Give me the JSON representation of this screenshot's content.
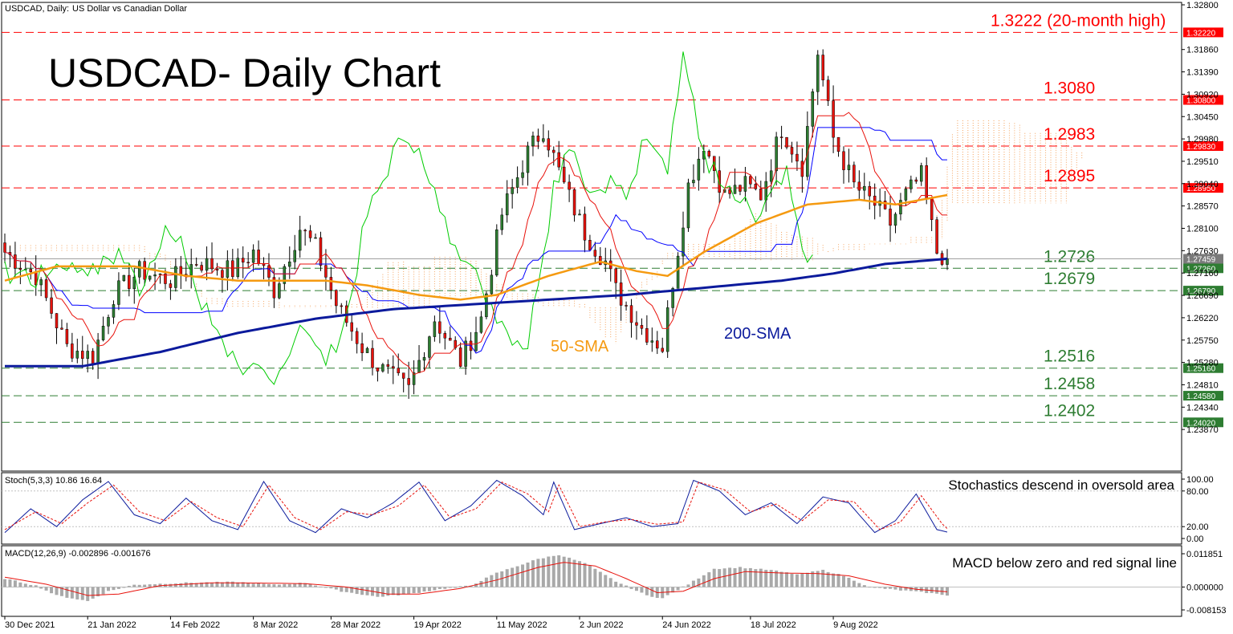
{
  "header": {
    "symbol": "USDCAD, Daily:",
    "description": "US Dollar vs Canadian Dollar"
  },
  "title": "USDCAD- Daily Chart",
  "colors": {
    "bull": "#2e7d32",
    "bear": "#e8120c",
    "sma50": "#f59a10",
    "sma200": "#0b1a9c",
    "kijun": "#0000ff",
    "tenkan": "#e8120c",
    "chikou": "#00cc00",
    "cloud": "#f4a460",
    "resistance": "#ff0000",
    "support": "#2e7d32",
    "signal": "#e8120c",
    "stoch_main": "#0b1a9c"
  },
  "price_axis": {
    "min": 1.234,
    "max": 1.328,
    "ticks": [
      "1.32800",
      "1.31860",
      "1.31390",
      "1.30920",
      "1.30450",
      "1.29980",
      "1.29510",
      "1.29040",
      "1.28570",
      "1.28100",
      "1.27630",
      "1.27160",
      "1.26690",
      "1.26220",
      "1.25750",
      "1.25280",
      "1.24810",
      "1.24340",
      "1.23870"
    ]
  },
  "date_labels": [
    "30 Dec 2021",
    "21 Jan 2022",
    "14 Feb 2022",
    "8 Mar 2022",
    "28 Mar 2022",
    "19 Apr 2022",
    "11 May 2022",
    "2 Jun 2022",
    "24 Jun 2022",
    "18 Jul 2022",
    "9 Aug 2022"
  ],
  "levels": [
    {
      "value": 1.3222,
      "label": "1.3222 (20-month high)",
      "tag": "1.32220",
      "type": "resistance"
    },
    {
      "value": 1.308,
      "label": "1.3080",
      "tag": "1.30800",
      "type": "resistance"
    },
    {
      "value": 1.2983,
      "label": "1.2983",
      "tag": "1.29830",
      "type": "resistance"
    },
    {
      "value": 1.2895,
      "label": "1.2895",
      "tag": "1.28950",
      "type": "resistance"
    },
    {
      "value": 1.2726,
      "label": "1.2726",
      "tag": "1.27260",
      "type": "support"
    },
    {
      "value": 1.2679,
      "label": "1.2679",
      "tag": "1.26790",
      "type": "support"
    },
    {
      "value": 1.2516,
      "label": "1.2516",
      "tag": "1.25160",
      "type": "support"
    },
    {
      "value": 1.2458,
      "label": "1.2458",
      "tag": "1.24580",
      "type": "support"
    },
    {
      "value": 1.2402,
      "label": "1.2402",
      "tag": "1.24020",
      "type": "support"
    }
  ],
  "current_price": {
    "value": 1.27459,
    "tag": "1.27459"
  },
  "annotations": {
    "sma50": "50-SMA",
    "sma200": "200-SMA"
  },
  "stoch": {
    "header": "Stoch(5,3,3) 10.86 16.64",
    "note": "Stochastics descend in oversold area",
    "ticks": [
      "100.00",
      "80.00",
      "20.00",
      "0.00"
    ]
  },
  "macd": {
    "header": "MACD(12,26,9) -0.002896 -0.001676",
    "note": "MACD below zero and red signal line",
    "ticks": [
      "0.011851",
      "0.000000",
      "-0.008153"
    ]
  },
  "chart_data": [
    {
      "type": "candlestick",
      "title": "USDCAD- Daily Chart",
      "x_start": "30 Dec 2021",
      "x_end": "11 Aug 2022",
      "ylim": [
        1.234,
        1.328
      ],
      "close_path": [
        [
          0,
          1.276
        ],
        [
          6,
          1.271
        ],
        [
          12,
          1.256
        ],
        [
          17,
          1.254
        ],
        [
          21,
          1.267
        ],
        [
          26,
          1.272
        ],
        [
          32,
          1.27
        ],
        [
          37,
          1.274
        ],
        [
          44,
          1.272
        ],
        [
          48,
          1.276
        ],
        [
          52,
          1.268
        ],
        [
          57,
          1.281
        ],
        [
          60,
          1.277
        ],
        [
          64,
          1.265
        ],
        [
          69,
          1.256
        ],
        [
          72,
          1.252
        ],
        [
          78,
          1.247
        ],
        [
          83,
          1.262
        ],
        [
          88,
          1.253
        ],
        [
          92,
          1.262
        ],
        [
          96,
          1.284
        ],
        [
          101,
          1.297
        ],
        [
          104,
          1.302
        ],
        [
          108,
          1.29
        ],
        [
          112,
          1.28
        ],
        [
          116,
          1.274
        ],
        [
          118,
          1.268
        ],
        [
          123,
          1.26
        ],
        [
          127,
          1.256
        ],
        [
          129,
          1.27
        ],
        [
          132,
          1.29
        ],
        [
          135,
          1.299
        ],
        [
          139,
          1.288
        ],
        [
          143,
          1.29
        ],
        [
          146,
          1.288
        ],
        [
          150,
          1.302
        ],
        [
          154,
          1.294
        ],
        [
          157,
          1.318
        ],
        [
          160,
          1.3
        ],
        [
          164,
          1.29
        ],
        [
          168,
          1.286
        ],
        [
          171,
          1.282
        ],
        [
          174,
          1.288
        ],
        [
          177,
          1.292
        ],
        [
          180,
          1.276
        ],
        [
          182,
          1.2746
        ]
      ],
      "sma50_path": [
        [
          0,
          1.27
        ],
        [
          10,
          1.273
        ],
        [
          25,
          1.273
        ],
        [
          35,
          1.271
        ],
        [
          45,
          1.27
        ],
        [
          55,
          1.27
        ],
        [
          62,
          1.27
        ],
        [
          70,
          1.269
        ],
        [
          80,
          1.267
        ],
        [
          88,
          1.266
        ],
        [
          95,
          1.267
        ],
        [
          105,
          1.271
        ],
        [
          115,
          1.274
        ],
        [
          122,
          1.272
        ],
        [
          128,
          1.271
        ],
        [
          135,
          1.276
        ],
        [
          145,
          1.282
        ],
        [
          155,
          1.286
        ],
        [
          165,
          1.287
        ],
        [
          172,
          1.286
        ],
        [
          182,
          1.288
        ]
      ],
      "sma200_path": [
        [
          0,
          1.252
        ],
        [
          15,
          1.252
        ],
        [
          30,
          1.255
        ],
        [
          45,
          1.259
        ],
        [
          60,
          1.262
        ],
        [
          75,
          1.264
        ],
        [
          90,
          1.265
        ],
        [
          105,
          1.266
        ],
        [
          120,
          1.267
        ],
        [
          130,
          1.268
        ],
        [
          140,
          1.269
        ],
        [
          150,
          1.27
        ],
        [
          160,
          1.2715
        ],
        [
          170,
          1.2735
        ],
        [
          182,
          1.2746
        ]
      ]
    },
    {
      "type": "line",
      "title": "Stoch(5,3,3)",
      "ylim": [
        0,
        100
      ],
      "main_path": [
        [
          0,
          10
        ],
        [
          5,
          50
        ],
        [
          10,
          20
        ],
        [
          15,
          65
        ],
        [
          20,
          96
        ],
        [
          25,
          40
        ],
        [
          30,
          25
        ],
        [
          35,
          68
        ],
        [
          40,
          30
        ],
        [
          45,
          15
        ],
        [
          50,
          96
        ],
        [
          55,
          30
        ],
        [
          60,
          10
        ],
        [
          65,
          50
        ],
        [
          70,
          35
        ],
        [
          75,
          60
        ],
        [
          80,
          95
        ],
        [
          85,
          30
        ],
        [
          90,
          55
        ],
        [
          95,
          98
        ],
        [
          100,
          72
        ],
        [
          104,
          40
        ],
        [
          106,
          95
        ],
        [
          110,
          15
        ],
        [
          115,
          25
        ],
        [
          120,
          35
        ],
        [
          125,
          20
        ],
        [
          130,
          25
        ],
        [
          133,
          98
        ],
        [
          138,
          80
        ],
        [
          143,
          40
        ],
        [
          148,
          60
        ],
        [
          153,
          25
        ],
        [
          158,
          70
        ],
        [
          163,
          60
        ],
        [
          168,
          10
        ],
        [
          172,
          30
        ],
        [
          176,
          75
        ],
        [
          180,
          15
        ],
        [
          182,
          10.86
        ]
      ],
      "signal_path": [
        [
          0,
          15
        ],
        [
          6,
          45
        ],
        [
          11,
          25
        ],
        [
          16,
          60
        ],
        [
          21,
          90
        ],
        [
          26,
          45
        ],
        [
          31,
          30
        ],
        [
          36,
          62
        ],
        [
          41,
          35
        ],
        [
          46,
          20
        ],
        [
          51,
          90
        ],
        [
          56,
          35
        ],
        [
          61,
          15
        ],
        [
          66,
          45
        ],
        [
          71,
          40
        ],
        [
          76,
          55
        ],
        [
          81,
          90
        ],
        [
          86,
          35
        ],
        [
          91,
          50
        ],
        [
          96,
          95
        ],
        [
          101,
          75
        ],
        [
          105,
          45
        ],
        [
          107,
          90
        ],
        [
          111,
          20
        ],
        [
          116,
          28
        ],
        [
          121,
          32
        ],
        [
          126,
          24
        ],
        [
          131,
          28
        ],
        [
          134,
          95
        ],
        [
          139,
          82
        ],
        [
          144,
          45
        ],
        [
          149,
          58
        ],
        [
          154,
          30
        ],
        [
          159,
          65
        ],
        [
          164,
          62
        ],
        [
          169,
          15
        ],
        [
          173,
          28
        ],
        [
          177,
          72
        ],
        [
          181,
          25
        ],
        [
          182,
          16.64
        ]
      ]
    },
    {
      "type": "bar+line",
      "title": "MACD(12,26,9)",
      "ylim": [
        -0.008153,
        0.011851
      ],
      "hist_path": [
        [
          0,
          0.003
        ],
        [
          6,
          0.0005
        ],
        [
          10,
          -0.003
        ],
        [
          16,
          -0.005
        ],
        [
          20,
          -0.0015
        ],
        [
          25,
          0.0008
        ],
        [
          35,
          0.0015
        ],
        [
          45,
          0.0018
        ],
        [
          52,
          0.0008
        ],
        [
          58,
          0.0015
        ],
        [
          65,
          -0.0015
        ],
        [
          72,
          -0.0035
        ],
        [
          78,
          -0.0025
        ],
        [
          85,
          -0.0005
        ],
        [
          90,
          0.0005
        ],
        [
          95,
          0.005
        ],
        [
          103,
          0.01
        ],
        [
          107,
          0.0115
        ],
        [
          112,
          0.0085
        ],
        [
          118,
          0.002
        ],
        [
          124,
          -0.003
        ],
        [
          127,
          -0.004
        ],
        [
          132,
          0.001
        ],
        [
          137,
          0.0065
        ],
        [
          142,
          0.007
        ],
        [
          148,
          0.006
        ],
        [
          153,
          0.0045
        ],
        [
          158,
          0.006
        ],
        [
          162,
          0.004
        ],
        [
          167,
          0.0
        ],
        [
          172,
          -0.001
        ],
        [
          178,
          -0.002
        ],
        [
          182,
          -0.0029
        ]
      ],
      "signal_path": [
        [
          0,
          0.0035
        ],
        [
          8,
          0.001
        ],
        [
          16,
          -0.003
        ],
        [
          22,
          -0.0025
        ],
        [
          30,
          0.0005
        ],
        [
          40,
          0.0015
        ],
        [
          50,
          0.0014
        ],
        [
          58,
          0.0012
        ],
        [
          66,
          0.0
        ],
        [
          74,
          -0.0025
        ],
        [
          80,
          -0.0025
        ],
        [
          88,
          -0.0005
        ],
        [
          95,
          0.0025
        ],
        [
          103,
          0.007
        ],
        [
          108,
          0.0088
        ],
        [
          114,
          0.0075
        ],
        [
          120,
          0.003
        ],
        [
          126,
          -0.002
        ],
        [
          131,
          -0.0015
        ],
        [
          137,
          0.003
        ],
        [
          143,
          0.0055
        ],
        [
          150,
          0.005
        ],
        [
          157,
          0.0048
        ],
        [
          163,
          0.004
        ],
        [
          170,
          0.001
        ],
        [
          176,
          -0.0008
        ],
        [
          182,
          -0.0017
        ]
      ]
    }
  ]
}
